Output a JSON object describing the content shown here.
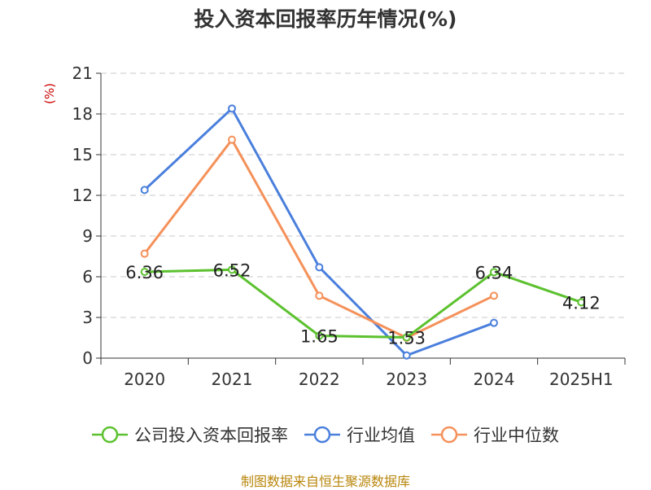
{
  "title": "投入资本回报率历年情况(%)",
  "source": "制图数据来自恒生聚源数据库",
  "chart_data": {
    "type": "line",
    "title": "投入资本回报率历年情况(%)",
    "ylabel": "(%)",
    "xlabel": "",
    "categories": [
      "2020",
      "2021",
      "2022",
      "2023",
      "2024",
      "2025H1"
    ],
    "ylim": [
      0,
      21
    ],
    "yticks": [
      0,
      3,
      6,
      9,
      12,
      15,
      18,
      21
    ],
    "grid": true,
    "legend_position": "bottom",
    "series": [
      {
        "name": "公司投入资本回报率",
        "color": "#5cc12f",
        "values": [
          6.36,
          6.52,
          1.65,
          1.53,
          6.34,
          4.12
        ],
        "labels": [
          "6.36",
          "6.52",
          "1.65",
          "1.53",
          "6.34",
          "4.12"
        ]
      },
      {
        "name": "行业均值",
        "color": "#4a7fdc",
        "values": [
          12.4,
          18.4,
          6.7,
          0.2,
          2.6,
          null
        ]
      },
      {
        "name": "行业中位数",
        "color": "#f5915a",
        "values": [
          7.7,
          16.1,
          4.6,
          1.5,
          4.6,
          null
        ]
      }
    ]
  }
}
